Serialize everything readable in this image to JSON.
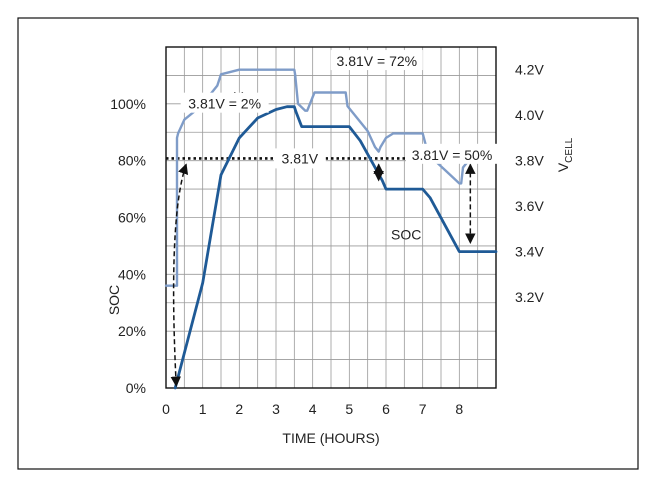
{
  "chart_data": {
    "type": "line",
    "title": "",
    "xlabel": "TIME (HOURS)",
    "ylabel_left": "SOC",
    "ylabel_right_main": "V",
    "ylabel_right_sub": "CELL",
    "xlim": [
      0,
      9
    ],
    "x_ticks": [
      "0",
      "1",
      "2",
      "3",
      "4",
      "5",
      "6",
      "7",
      "8"
    ],
    "ylim_left": [
      0,
      120
    ],
    "y_ticks_left": [
      "0%",
      "20%",
      "40%",
      "60%",
      "80%",
      "100%"
    ],
    "ylim_right": [
      2.8,
      4.3
    ],
    "y_ticks_right": [
      "3.2V",
      "3.4V",
      "3.6V",
      "3.8V",
      "4.0V",
      "4.2V"
    ],
    "grid": true,
    "colors": {
      "vcell": "#7f9cc8",
      "soc": "#1f5a96",
      "threshold": "#111111",
      "grid": "#9a9a9a"
    },
    "threshold": {
      "value": 3.81,
      "label": "3.81V"
    },
    "series": [
      {
        "name": "VCELL",
        "label_main": "V",
        "label_sub": "CELL",
        "axis": "right",
        "x": [
          0,
          0.3,
          0.3,
          0.33,
          0.5,
          0.8,
          1.0,
          1.2,
          1.4,
          1.5,
          2.0,
          2.5,
          3.0,
          3.5,
          3.52,
          3.6,
          3.8,
          3.85,
          4.0,
          4.05,
          4.1,
          4.8,
          4.9,
          4.95,
          5.2,
          5.5,
          5.7,
          5.8,
          5.85,
          6.0,
          6.2,
          6.3,
          6.4,
          7.0,
          7.1,
          7.2,
          7.6,
          8.0,
          8.05,
          8.1,
          8.3,
          8.6,
          9.0
        ],
        "y": [
          3.25,
          3.25,
          3.9,
          3.92,
          3.98,
          4.02,
          4.05,
          4.09,
          4.13,
          4.18,
          4.2,
          4.2,
          4.2,
          4.2,
          4.18,
          4.05,
          4.02,
          4.02,
          4.08,
          4.1,
          4.1,
          4.1,
          4.1,
          4.04,
          3.99,
          3.93,
          3.86,
          3.84,
          3.86,
          3.9,
          3.92,
          3.92,
          3.92,
          3.92,
          3.86,
          3.82,
          3.76,
          3.7,
          3.7,
          3.77,
          3.81,
          3.81,
          3.81
        ]
      },
      {
        "name": "SOC",
        "axis": "left",
        "x": [
          0.25,
          1.0,
          1.5,
          2.0,
          2.5,
          3.0,
          3.3,
          3.5,
          3.55,
          3.7,
          4.5,
          5.0,
          5.3,
          5.9,
          6.0,
          7.0,
          7.2,
          8.0,
          9.0
        ],
        "y": [
          0,
          37,
          75,
          88,
          95,
          98,
          99,
          99,
          97,
          92,
          92,
          92,
          87,
          73,
          70,
          70,
          67,
          48,
          48
        ]
      }
    ],
    "annotations": [
      {
        "text": "3.81V = 2%",
        "from_x": 0.55,
        "from_v": 3.81,
        "to_x": 0.28,
        "to_soc": 0
      },
      {
        "text": "3.81V = 72%",
        "from_x": 5.8,
        "from_v": 3.81,
        "to_x": 5.8,
        "to_soc": 72
      },
      {
        "text": "3.81V = 50%",
        "from_x": 8.3,
        "from_v": 3.81,
        "to_x": 8.3,
        "to_soc": 50
      }
    ]
  }
}
